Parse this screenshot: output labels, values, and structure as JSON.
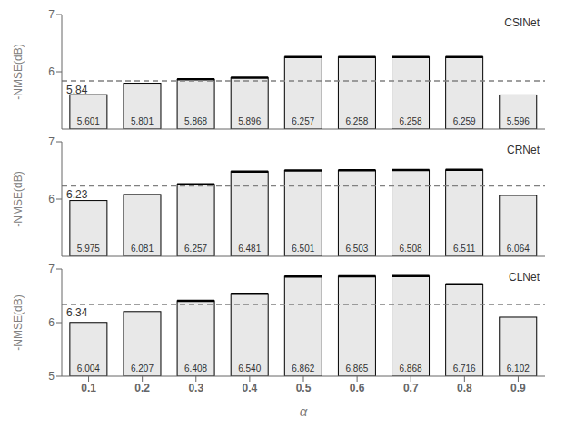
{
  "chart_data": [
    {
      "type": "bar",
      "categories": [
        "0.1",
        "0.2",
        "0.3",
        "0.4",
        "0.5",
        "0.6",
        "0.7",
        "0.8",
        "0.9"
      ],
      "values": [
        5.601,
        5.801,
        5.868,
        5.896,
        6.257,
        6.258,
        6.258,
        6.259,
        5.596
      ],
      "value_labels": [
        "5.601",
        "5.801",
        "5.868",
        "5.896",
        "6.257",
        "6.258",
        "6.258",
        "6.259",
        "5.596"
      ],
      "data_labels": true,
      "baseline": 5.84,
      "annotations": [
        "CSINet"
      ],
      "y_label": "-NMSE(dB)",
      "color": "#e8e8e8",
      "ylim": [
        5,
        7
      ],
      "yticks": [
        5,
        6,
        7
      ],
      "grid": false,
      "tick_labels": "y"
    },
    {
      "type": "bar",
      "categories": [
        "0.1",
        "0.2",
        "0.3",
        "0.4",
        "0.5",
        "0.6",
        "0.7",
        "0.8",
        "0.9"
      ],
      "values": [
        5.975,
        6.081,
        6.257,
        6.481,
        6.501,
        6.503,
        6.508,
        6.511,
        6.064
      ],
      "value_labels": [
        "5.975",
        "6.081",
        "6.257",
        "6.481",
        "6.501",
        "6.503",
        "6.508",
        "6.511",
        "6.064"
      ],
      "data_labels": true,
      "baseline": 6.23,
      "annotations": [
        "CRNet"
      ],
      "y_label": "-NMSE(dB)",
      "color": "#e8e8e8",
      "ylim": [
        5,
        7
      ],
      "yticks": [
        5,
        6,
        7
      ],
      "grid": false,
      "tick_labels": "y"
    },
    {
      "type": "bar",
      "categories": [
        "0.1",
        "0.2",
        "0.3",
        "0.4",
        "0.5",
        "0.6",
        "0.7",
        "0.8",
        "0.9"
      ],
      "values": [
        6.004,
        6.207,
        6.408,
        6.54,
        6.862,
        6.865,
        6.868,
        6.716,
        6.102
      ],
      "value_labels": [
        "6.004",
        "6.207",
        "6.408",
        "6.540",
        "6.862",
        "6.865",
        "6.868",
        "6.716",
        "6.102"
      ],
      "data_labels": true,
      "baseline": 6.34,
      "annotations": [
        "CLNet"
      ],
      "y_label": "-NMSE(dB)",
      "x_label": "α",
      "color": "#e8e8e8",
      "ylim": [
        5,
        7
      ],
      "yticks": [
        5,
        6,
        7
      ],
      "grid": false
    }
  ]
}
